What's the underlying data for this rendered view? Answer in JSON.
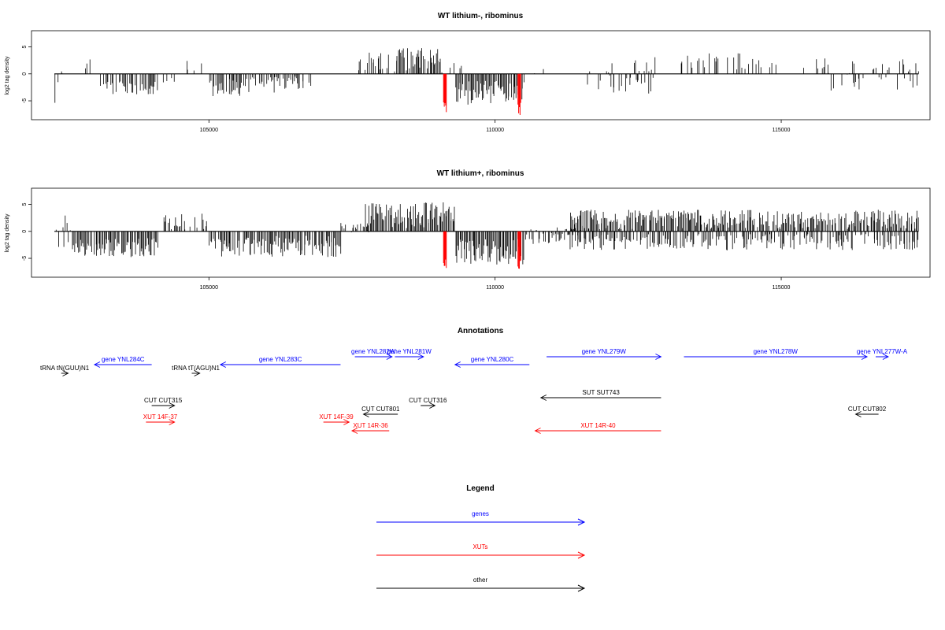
{
  "colors": {
    "black": "#000000",
    "blue": "#0000ff",
    "red": "#ff0000"
  },
  "chart_data": [
    {
      "type": "bar",
      "title": "WT lithium-, ribominus",
      "ylabel": "log2 tag density",
      "xlim": [
        101900,
        117600
      ],
      "ylim": [
        -8.5,
        8
      ],
      "xticks": [
        105000,
        110000,
        115000
      ],
      "yticks": [
        5,
        0,
        -5
      ],
      "highlight_positions": [
        109100,
        110400
      ],
      "segments": [
        {
          "from": 102300,
          "to": 102500,
          "density": 0.25,
          "mean": -1.5,
          "amp": 4
        },
        {
          "from": 102700,
          "to": 103000,
          "density": 0.2,
          "mean": 2.0,
          "amp": 1.2
        },
        {
          "from": 103100,
          "to": 104100,
          "density": 0.7,
          "mean": -2.6,
          "amp": 1.5
        },
        {
          "from": 104200,
          "to": 104500,
          "density": 0.1,
          "mean": -1.0,
          "amp": 1.0
        },
        {
          "from": 104600,
          "to": 105000,
          "density": 0.25,
          "mean": 1.8,
          "amp": 2.0
        },
        {
          "from": 105000,
          "to": 105600,
          "density": 0.8,
          "mean": -2.5,
          "amp": 1.8
        },
        {
          "from": 105600,
          "to": 106800,
          "density": 0.6,
          "mean": -2.0,
          "amp": 1.5
        },
        {
          "from": 107600,
          "to": 108300,
          "density": 0.6,
          "mean": 2.2,
          "amp": 1.8
        },
        {
          "from": 108300,
          "to": 109000,
          "density": 0.9,
          "mean": 2.8,
          "amp": 2.2
        },
        {
          "from": 109000,
          "to": 109400,
          "density": 0.3,
          "mean": 1.5,
          "amp": 1.5
        },
        {
          "from": 109300,
          "to": 110500,
          "density": 0.95,
          "mean": -3.5,
          "amp": 2.2
        },
        {
          "from": 110500,
          "to": 110900,
          "density": 0.15,
          "mean": 1.0,
          "amp": 1.0
        },
        {
          "from": 111500,
          "to": 112800,
          "density": 0.25,
          "mean": -1.5,
          "amp": 2.2
        },
        {
          "from": 111800,
          "to": 112800,
          "density": 0.15,
          "mean": 1.8,
          "amp": 1.5
        },
        {
          "from": 113200,
          "to": 114800,
          "density": 0.3,
          "mean": 2.3,
          "amp": 1.5
        },
        {
          "from": 114500,
          "to": 115900,
          "density": 0.15,
          "mean": 1.8,
          "amp": 1.4
        },
        {
          "from": 115800,
          "to": 117400,
          "density": 0.25,
          "mean": -1.0,
          "amp": 2.3
        },
        {
          "from": 116100,
          "to": 117400,
          "density": 0.15,
          "mean": 1.5,
          "amp": 1.2
        }
      ]
    },
    {
      "type": "bar",
      "title": "WT lithium+, ribominus",
      "ylabel": "log2 tag density",
      "xlim": [
        101900,
        117600
      ],
      "ylim": [
        -8.5,
        8
      ],
      "xticks": [
        105000,
        110000,
        115000
      ],
      "yticks": [
        5,
        0,
        -5
      ],
      "highlight_positions": [
        109100,
        110400
      ],
      "segments": [
        {
          "from": 102300,
          "to": 102600,
          "density": 0.5,
          "mean": -1.0,
          "amp": 4
        },
        {
          "from": 102600,
          "to": 104100,
          "density": 0.9,
          "mean": -3.0,
          "amp": 1.8
        },
        {
          "from": 104200,
          "to": 105000,
          "density": 0.5,
          "mean": 1.8,
          "amp": 1.5
        },
        {
          "from": 105000,
          "to": 107300,
          "density": 0.9,
          "mean": -2.8,
          "amp": 2.0
        },
        {
          "from": 107300,
          "to": 107800,
          "density": 0.6,
          "mean": 0.8,
          "amp": 1.0
        },
        {
          "from": 107700,
          "to": 109300,
          "density": 0.95,
          "mean": 3.0,
          "amp": 2.4
        },
        {
          "from": 109300,
          "to": 110500,
          "density": 0.98,
          "mean": -3.8,
          "amp": 2.4
        },
        {
          "from": 110500,
          "to": 111700,
          "density": 0.7,
          "mean": -1.0,
          "amp": 1.8
        },
        {
          "from": 111300,
          "to": 117400,
          "density": 0.85,
          "mean": 2.2,
          "amp": 1.8
        },
        {
          "from": 111300,
          "to": 117400,
          "density": 0.6,
          "mean": -2.0,
          "amp": 1.5
        }
      ]
    }
  ],
  "annotations": {
    "title": "Annotations",
    "xlim": [
      101900,
      117600
    ],
    "features": [
      {
        "label": "tRNA tN(GUU)N1",
        "start": 102420,
        "end": 102540,
        "strand": "+",
        "color": "black",
        "row": 2
      },
      {
        "label": "gene YNL284C",
        "start": 103000,
        "end": 104000,
        "strand": "-",
        "color": "blue",
        "row": 1
      },
      {
        "label": "tRNA tT(AGU)N1",
        "start": 104700,
        "end": 104840,
        "strand": "+",
        "color": "black",
        "row": 2
      },
      {
        "label": "gene YNL283C",
        "start": 105200,
        "end": 107300,
        "strand": "-",
        "color": "blue",
        "row": 1
      },
      {
        "label": "gene YNL282W",
        "start": 107550,
        "end": 108200,
        "strand": "+",
        "color": "blue",
        "row": 0
      },
      {
        "label": "gene YNL281W",
        "start": 108250,
        "end": 108750,
        "strand": "+",
        "color": "blue",
        "row": 0
      },
      {
        "label": "gene YNL280C",
        "start": 109300,
        "end": 110600,
        "strand": "-",
        "color": "blue",
        "row": 1
      },
      {
        "label": "gene YNL279W",
        "start": 110900,
        "end": 112900,
        "strand": "+",
        "color": "blue",
        "row": 0
      },
      {
        "label": "gene YNL278W",
        "start": 113300,
        "end": 116500,
        "strand": "+",
        "color": "blue",
        "row": 0
      },
      {
        "label": "gene YNL277W-A",
        "start": 116650,
        "end": 116870,
        "strand": "+",
        "color": "blue",
        "row": 0
      },
      {
        "label": "SUT SUT743",
        "start": 110800,
        "end": 112900,
        "strand": "-",
        "color": "black",
        "row": 3
      },
      {
        "label": "CUT CUT315",
        "start": 104000,
        "end": 104400,
        "strand": "+",
        "color": "black",
        "row": 4
      },
      {
        "label": "CUT CUT316",
        "start": 108700,
        "end": 108950,
        "strand": "+",
        "color": "black",
        "row": 4
      },
      {
        "label": "CUT CUT801",
        "start": 107700,
        "end": 108300,
        "strand": "-",
        "color": "black",
        "row": 5
      },
      {
        "label": "CUT CUT802",
        "start": 116300,
        "end": 116700,
        "strand": "-",
        "color": "black",
        "row": 5
      },
      {
        "label": "XUT 14F-37",
        "start": 103900,
        "end": 104400,
        "strand": "+",
        "color": "red",
        "row": 6
      },
      {
        "label": "XUT 14F-39",
        "start": 107000,
        "end": 107450,
        "strand": "+",
        "color": "red",
        "row": 6
      },
      {
        "label": "XUT 14R-36",
        "start": 107500,
        "end": 108150,
        "strand": "-",
        "color": "red",
        "row": 7
      },
      {
        "label": "XUT 14R-40",
        "start": 110700,
        "end": 112900,
        "strand": "-",
        "color": "red",
        "row": 7
      }
    ]
  },
  "legend": {
    "title": "Legend",
    "items": [
      {
        "label": "genes",
        "color": "blue"
      },
      {
        "label": "XUTs",
        "color": "red"
      },
      {
        "label": "other",
        "color": "black"
      }
    ]
  }
}
